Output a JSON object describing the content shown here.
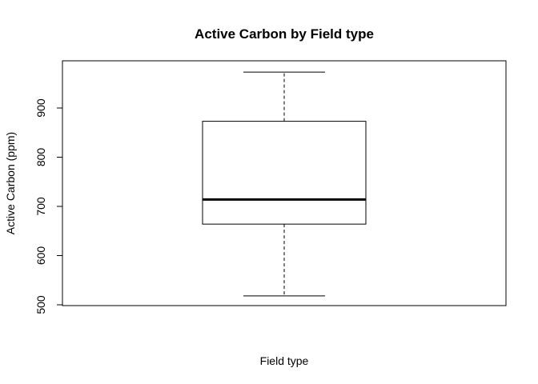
{
  "chart_data": {
    "type": "boxplot",
    "title": "Active Carbon by Field type",
    "xlabel": "Field type",
    "ylabel": "Active Carbon (ppm)",
    "ylim": [
      500,
      990
    ],
    "yticks": [
      500,
      600,
      700,
      800,
      900
    ],
    "grid": false,
    "legend": "none",
    "boxes": [
      {
        "whisker_low": 518,
        "q1": 664,
        "median": 714,
        "q3": 873,
        "whisker_high": 973
      }
    ]
  }
}
